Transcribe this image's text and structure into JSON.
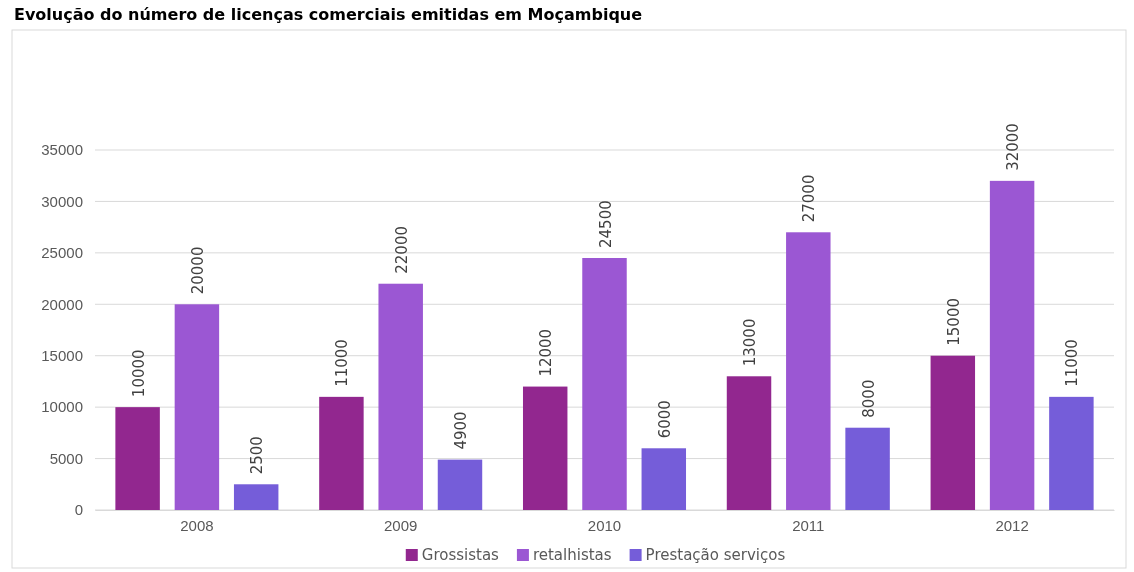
{
  "chart_data": {
    "type": "bar",
    "title": "Evolução do número de licenças comerciais emitidas em Moçambique",
    "categories": [
      "2008",
      "2009",
      "2010",
      "2011",
      "2012"
    ],
    "series": [
      {
        "name": "Grossistas",
        "color": "#92278f",
        "values": [
          10000,
          11000,
          12000,
          13000,
          15000
        ]
      },
      {
        "name": "retalhistas",
        "color": "#9b57d3",
        "values": [
          20000,
          22000,
          24500,
          27000,
          32000
        ]
      },
      {
        "name": "Prestação serviços",
        "color": "#755dd9",
        "values": [
          2500,
          4900,
          6000,
          8000,
          11000
        ]
      }
    ],
    "ylim": [
      0,
      35000
    ],
    "yticks": [
      0,
      5000,
      10000,
      15000,
      20000,
      25000,
      30000,
      35000
    ],
    "grid": "y",
    "legend": "bottom",
    "data_labels": true
  }
}
